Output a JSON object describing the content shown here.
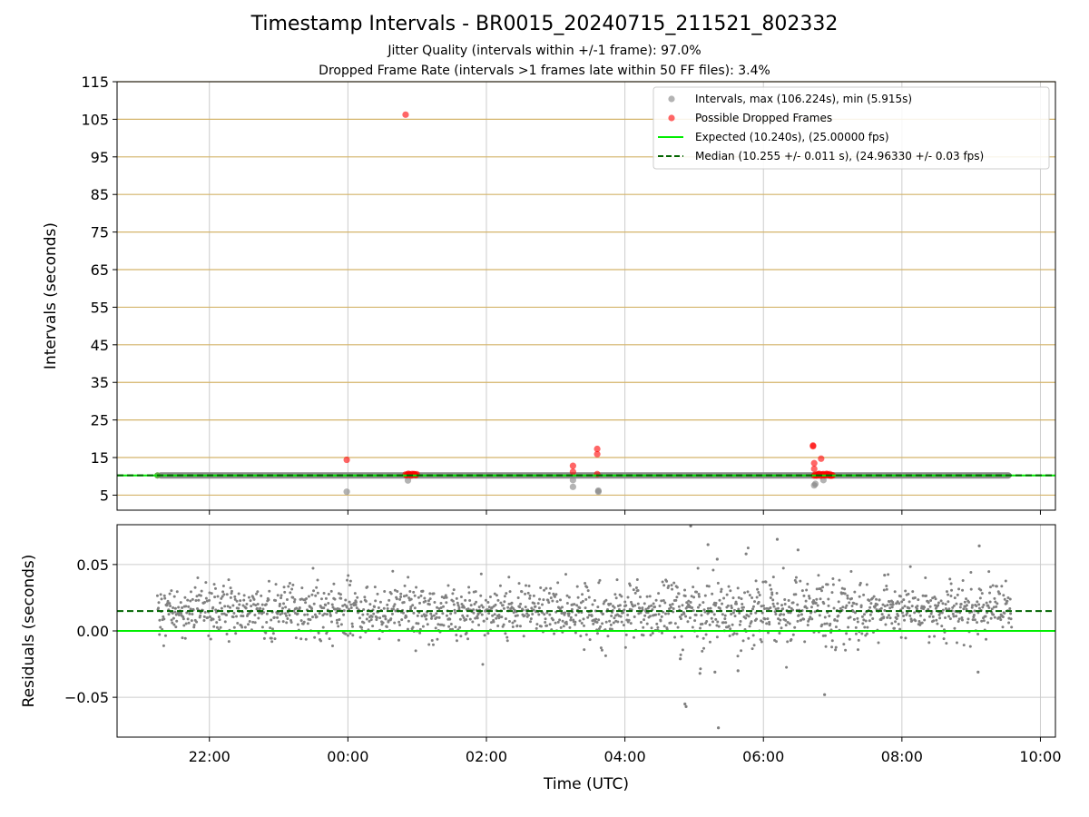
{
  "title": "Timestamp Intervals - BR0015_20240715_211521_802332",
  "subtitle_1": "Jitter Quality (intervals within +/-1 frame): 97.0%",
  "subtitle_2": "Dropped Frame Rate (intervals >1 frames late within 50 FF files): 3.4%",
  "colors": {
    "intervals": "#808080",
    "dropped": "#ff0000",
    "expected": "#00ee00",
    "median": "#006400",
    "grid_top": "#d4b46a",
    "grid": "#cccccc"
  },
  "chart_data": [
    {
      "type": "scatter",
      "ylabel": "Intervals (seconds)",
      "ylim": [
        1,
        115
      ],
      "yticks": [
        5,
        15,
        25,
        35,
        45,
        55,
        65,
        75,
        85,
        95,
        105,
        115
      ],
      "xlim": [
        "20:40",
        "10:13"
      ],
      "xticks": [
        "22:00",
        "00:00",
        "02:00",
        "04:00",
        "06:00",
        "08:00",
        "10:00"
      ],
      "grid": "horizontal (y) and vertical (x)",
      "legend_position": "top-right",
      "legend": [
        "Intervals, max (106.224s), min (5.915s)",
        "Possible Dropped Frames",
        "Expected (10.240s), (25.00000 fps)",
        "Median (10.255 +/- 0.011 s), (24.96330 +/- 0.03 fps)"
      ],
      "series": [
        {
          "name": "Intervals, max (106.224s), min (5.915s)",
          "note": "dense band",
          "x_range": [
            "21:15",
            "09:35"
          ],
          "y": 10.25
        },
        {
          "name": "Intervals, max (106.224s), min (5.915s)",
          "x": [
            "23:59",
            "00:52",
            "03:15",
            "03:15",
            "03:37",
            "03:37",
            "06:44",
            "06:45",
            "06:52"
          ],
          "y": [
            5.9,
            8.9,
            7.2,
            9.0,
            5.915,
            6.2,
            7.6,
            8.0,
            9.0
          ]
        },
        {
          "name": "Possible Dropped Frames",
          "x": [
            "23:59",
            "00:50",
            "03:15",
            "03:15",
            "03:36",
            "03:36",
            "03:36",
            "06:43",
            "06:43",
            "06:44",
            "06:44",
            "06:50",
            "06:52",
            "06:55",
            "06:58"
          ],
          "y": [
            14.4,
            106.224,
            12.8,
            11.2,
            17.3,
            15.9,
            10.6,
            18.2,
            18.0,
            13.5,
            12.0,
            14.7,
            10.6,
            10.4,
            10.2
          ]
        },
        {
          "name": "Possible Dropped Frames",
          "note": "clustered",
          "x_range": [
            "00:50",
            "01:00"
          ],
          "y": 10.4
        },
        {
          "name": "Possible Dropped Frames",
          "note": "clustered",
          "x_range": [
            "06:44",
            "07:00"
          ],
          "y": 10.4
        },
        {
          "name": "Expected (10.240s), (25.00000 fps)",
          "y": 10.24
        },
        {
          "name": "Median (10.255 +/- 0.011 s), (24.96330 +/- 0.03 fps)",
          "y": 10.255
        }
      ]
    },
    {
      "type": "scatter",
      "xlabel": "Time (UTC)",
      "ylabel": "Residuals (seconds)",
      "ylim": [
        -0.08,
        0.08
      ],
      "yticks": [
        -0.05,
        0.0,
        0.05
      ],
      "ytick_labels": [
        "−0.05",
        "0.00",
        "0.05"
      ],
      "xlim": [
        "20:40",
        "10:13"
      ],
      "xticks": [
        "22:00",
        "00:00",
        "02:00",
        "04:00",
        "06:00",
        "08:00",
        "10:00"
      ],
      "grid": "horizontal (y) and vertical (x)",
      "series": [
        {
          "name": "Residuals",
          "note": "scattered gray points, mean 0.015, spread about ±0.02",
          "x_range": [
            "21:15",
            "09:35"
          ],
          "count": 1800
        },
        {
          "name": "Residuals outliers",
          "x": [
            "04:52",
            "04:53",
            "05:05",
            "05:12",
            "05:18",
            "05:21",
            "05:45",
            "06:12",
            "07:45",
            "06:53",
            "09:07",
            "04:57",
            "05:20",
            "06:30",
            "09:06",
            "05:38",
            "04:48"
          ],
          "y": [
            -0.055,
            -0.057,
            -0.032,
            0.065,
            -0.031,
            -0.073,
            0.058,
            0.069,
            0.042,
            -0.048,
            0.064,
            0.079,
            0.054,
            0.061,
            -0.031,
            -0.03,
            -0.021
          ]
        },
        {
          "name": "Expected",
          "y": 0.0
        },
        {
          "name": "Median",
          "y": 0.015
        }
      ]
    }
  ]
}
